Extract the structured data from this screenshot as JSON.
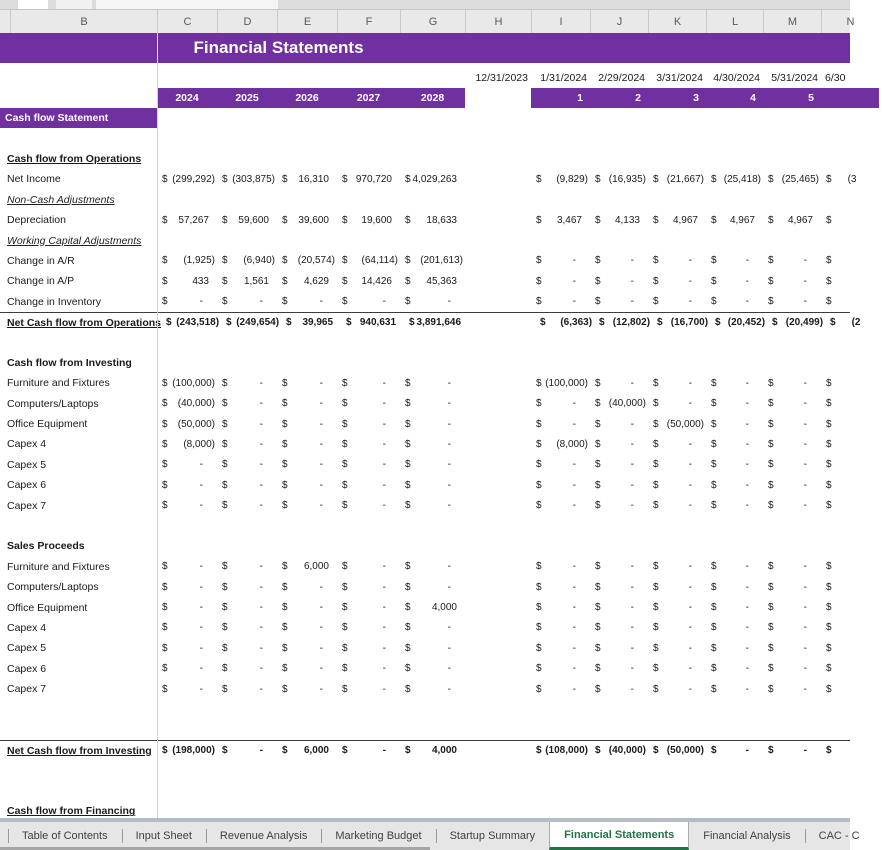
{
  "title": "Financial Statements",
  "columns": {
    "letters": [
      "B",
      "C",
      "D",
      "E",
      "F",
      "G",
      "H",
      "I",
      "J",
      "K",
      "L",
      "M",
      "N"
    ]
  },
  "dates": [
    "12/31/2023",
    "1/31/2024",
    "2/29/2024",
    "3/31/2024",
    "4/30/2024",
    "5/31/2024",
    "6/30"
  ],
  "year_labels": [
    "2024",
    "2025",
    "2026",
    "2027",
    "2028"
  ],
  "month_labels": [
    "1",
    "2",
    "3",
    "4",
    "5"
  ],
  "rows": [
    {
      "type": "purple",
      "label": "Cash flow Statement"
    },
    {
      "type": "blank"
    },
    {
      "type": "section",
      "label": "Cash flow from Operations",
      "underline": true
    },
    {
      "type": "data",
      "label": "Net Income",
      "annual": [
        "(299,292)",
        "(303,875)",
        "16,310",
        "970,720",
        "4,029,263"
      ],
      "monthly": [
        "(9,829)",
        "(16,935)",
        "(21,667)",
        "(25,418)",
        "(25,465)"
      ],
      "n_partial": "(3"
    },
    {
      "type": "italic",
      "label": "Non-Cash Adjustments"
    },
    {
      "type": "data",
      "label": "Depreciation",
      "annual": [
        "57,267",
        "59,600",
        "39,600",
        "19,600",
        "18,633"
      ],
      "monthly": [
        "3,467",
        "4,133",
        "4,967",
        "4,967",
        "4,967"
      ],
      "n_partial": ""
    },
    {
      "type": "italic",
      "label": "Working Capital Adjustments"
    },
    {
      "type": "data",
      "label": "Change in A/R",
      "annual": [
        "(1,925)",
        "(6,940)",
        "(20,574)",
        "(64,114)",
        "(201,613)"
      ],
      "monthly": [
        "-",
        "-",
        "-",
        "-",
        "-"
      ],
      "n_partial": ""
    },
    {
      "type": "data",
      "label": "Change in A/P",
      "annual": [
        "433",
        "1,561",
        "4,629",
        "14,426",
        "45,363"
      ],
      "monthly": [
        "-",
        "-",
        "-",
        "-",
        "-"
      ],
      "n_partial": ""
    },
    {
      "type": "data",
      "label": "Change in Inventory",
      "annual": [
        "-",
        "-",
        "-",
        "-",
        "-"
      ],
      "monthly": [
        "-",
        "-",
        "-",
        "-",
        "-"
      ],
      "n_partial": ""
    },
    {
      "type": "total",
      "label": "Net Cash flow from Operations",
      "annual": [
        "(243,518)",
        "(249,654)",
        "39,965",
        "940,631",
        "3,891,646"
      ],
      "monthly": [
        "(6,363)",
        "(12,802)",
        "(16,700)",
        "(20,452)",
        "(20,499)"
      ],
      "n_partial": "(2"
    },
    {
      "type": "blank"
    },
    {
      "type": "section",
      "label": "Cash flow from Investing",
      "underline": false
    },
    {
      "type": "data",
      "label": "Furniture and Fixtures",
      "annual": [
        "(100,000)",
        "-",
        "-",
        "-",
        "-"
      ],
      "monthly": [
        "(100,000)",
        "-",
        "-",
        "-",
        "-"
      ],
      "n_partial": ""
    },
    {
      "type": "data",
      "label": "Computers/Laptops",
      "annual": [
        "(40,000)",
        "-",
        "-",
        "-",
        "-"
      ],
      "monthly": [
        "-",
        "(40,000)",
        "-",
        "-",
        "-"
      ],
      "n_partial": ""
    },
    {
      "type": "data",
      "label": "Office Equipment",
      "annual": [
        "(50,000)",
        "-",
        "-",
        "-",
        "-"
      ],
      "monthly": [
        "-",
        "-",
        "(50,000)",
        "-",
        "-"
      ],
      "n_partial": ""
    },
    {
      "type": "data",
      "label": "Capex 4",
      "annual": [
        "(8,000)",
        "-",
        "-",
        "-",
        "-"
      ],
      "monthly": [
        "(8,000)",
        "-",
        "-",
        "-",
        "-"
      ],
      "n_partial": ""
    },
    {
      "type": "data",
      "label": "Capex 5",
      "annual": [
        "-",
        "-",
        "-",
        "-",
        "-"
      ],
      "monthly": [
        "-",
        "-",
        "-",
        "-",
        "-"
      ],
      "n_partial": ""
    },
    {
      "type": "data",
      "label": "Capex 6",
      "annual": [
        "-",
        "-",
        "-",
        "-",
        "-"
      ],
      "monthly": [
        "-",
        "-",
        "-",
        "-",
        "-"
      ],
      "n_partial": ""
    },
    {
      "type": "data",
      "label": "Capex 7",
      "annual": [
        "-",
        "-",
        "-",
        "-",
        "-"
      ],
      "monthly": [
        "-",
        "-",
        "-",
        "-",
        "-"
      ],
      "n_partial": ""
    },
    {
      "type": "blank"
    },
    {
      "type": "section",
      "label": "Sales Proceeds",
      "underline": false
    },
    {
      "type": "data",
      "label": "Furniture and Fixtures",
      "annual": [
        "-",
        "-",
        "6,000",
        "-",
        "-"
      ],
      "monthly": [
        "-",
        "-",
        "-",
        "-",
        "-"
      ],
      "n_partial": ""
    },
    {
      "type": "data",
      "label": "Computers/Laptops",
      "annual": [
        "-",
        "-",
        "-",
        "-",
        "-"
      ],
      "monthly": [
        "-",
        "-",
        "-",
        "-",
        "-"
      ],
      "n_partial": ""
    },
    {
      "type": "data",
      "label": "Office Equipment",
      "annual": [
        "-",
        "-",
        "-",
        "-",
        "4,000"
      ],
      "monthly": [
        "-",
        "-",
        "-",
        "-",
        "-"
      ],
      "n_partial": ""
    },
    {
      "type": "data",
      "label": "Capex 4",
      "annual": [
        "-",
        "-",
        "-",
        "-",
        "-"
      ],
      "monthly": [
        "-",
        "-",
        "-",
        "-",
        "-"
      ],
      "n_partial": ""
    },
    {
      "type": "data",
      "label": "Capex 5",
      "annual": [
        "-",
        "-",
        "-",
        "-",
        "-"
      ],
      "monthly": [
        "-",
        "-",
        "-",
        "-",
        "-"
      ],
      "n_partial": ""
    },
    {
      "type": "data",
      "label": "Capex 6",
      "annual": [
        "-",
        "-",
        "-",
        "-",
        "-"
      ],
      "monthly": [
        "-",
        "-",
        "-",
        "-",
        "-"
      ],
      "n_partial": ""
    },
    {
      "type": "data",
      "label": "Capex 7",
      "annual": [
        "-",
        "-",
        "-",
        "-",
        "-"
      ],
      "monthly": [
        "-",
        "-",
        "-",
        "-",
        "-"
      ],
      "n_partial": ""
    },
    {
      "type": "blank"
    },
    {
      "type": "blank"
    },
    {
      "type": "total",
      "label": "Net Cash flow from Investing",
      "annual": [
        "(198,000)",
        "-",
        "6,000",
        "-",
        "4,000"
      ],
      "monthly": [
        "(108,000)",
        "(40,000)",
        "(50,000)",
        "-",
        "-"
      ],
      "n_partial": ""
    },
    {
      "type": "blank"
    },
    {
      "type": "blank"
    },
    {
      "type": "section",
      "label": "Cash flow from Financing",
      "underline": true
    }
  ],
  "tabs": {
    "items": [
      {
        "label": "Table of Contents",
        "active": false
      },
      {
        "label": "Input Sheet",
        "active": false
      },
      {
        "label": "Revenue Analysis",
        "active": false
      },
      {
        "label": "Marketing Budget",
        "active": false
      },
      {
        "label": "Startup Summary",
        "active": false
      },
      {
        "label": "Financial Statements",
        "active": true
      },
      {
        "label": "Financial Analysis",
        "active": false
      },
      {
        "label": "CAC - C",
        "active": false
      }
    ]
  },
  "colors": {
    "purple": "#7030a0",
    "green": "#217346",
    "header_bg": "#e9e9e9"
  }
}
